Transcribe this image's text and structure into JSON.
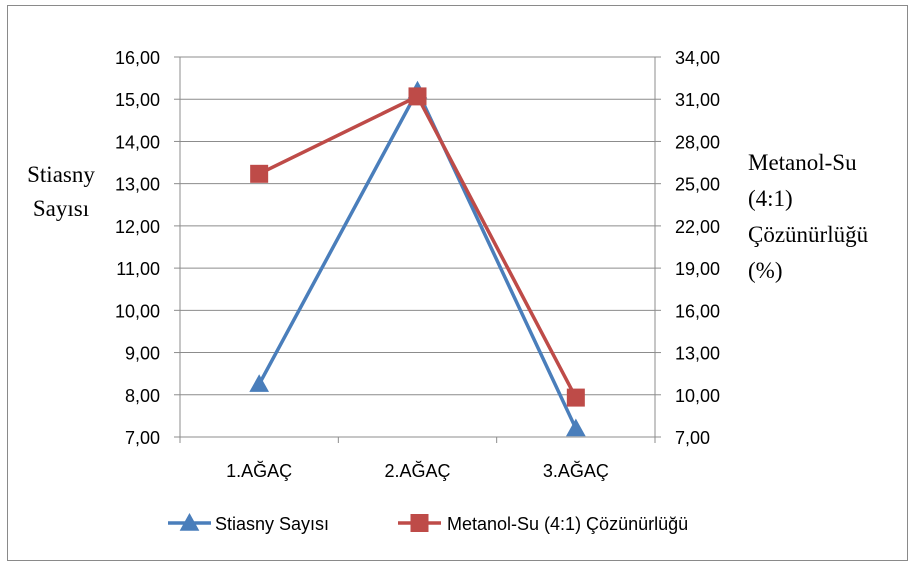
{
  "chart_data": {
    "type": "line",
    "categories": [
      "1.AĞAÇ",
      "2.AĞAÇ",
      "3.AĞAÇ"
    ],
    "series": [
      {
        "name": "Stiasny Sayısı",
        "axis": "left",
        "values": [
          8.25,
          15.2,
          7.2
        ],
        "color": "#4a7ebb",
        "marker": "triangle"
      },
      {
        "name": "Metanol-Su (4:1) Çözünürlüğü",
        "axis": "right",
        "values": [
          25.7,
          31.2,
          9.8
        ],
        "color": "#be4b48",
        "marker": "square"
      }
    ],
    "y_left": {
      "label_lines": [
        "Stiasny",
        "Sayısı"
      ],
      "ylim": [
        7,
        16
      ],
      "ticks": [
        "7,00",
        "8,00",
        "9,00",
        "10,00",
        "11,00",
        "12,00",
        "13,00",
        "14,00",
        "15,00",
        "16,00"
      ]
    },
    "y_right": {
      "label_lines": [
        "Metanol-Su",
        "(4:1)",
        "Çözünürlüğü",
        "(%)"
      ],
      "ylim": [
        7,
        34
      ],
      "ticks": [
        "7,00",
        "10,00",
        "13,00",
        "16,00",
        "19,00",
        "22,00",
        "25,00",
        "28,00",
        "31,00",
        "34,00"
      ]
    },
    "grid": true,
    "legend_position": "bottom"
  }
}
